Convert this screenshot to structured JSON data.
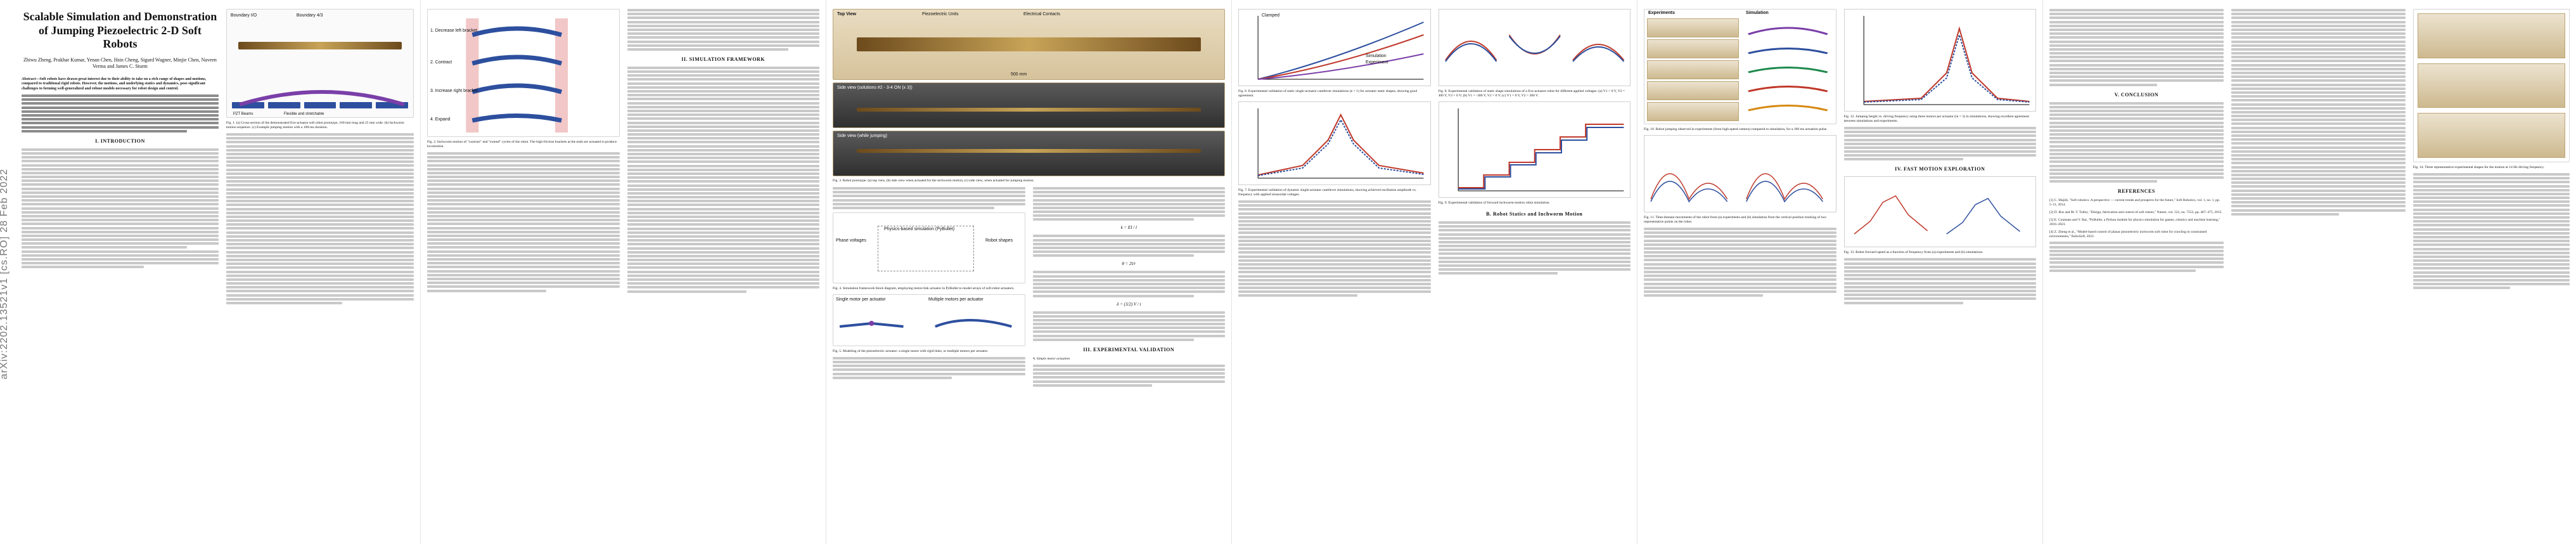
{
  "sidebar": {
    "arxiv_id": "arXiv:2202.13521v1  [cs.RO]  28 Feb 2022"
  },
  "paper": {
    "title": "Scalable Simulation and Demonstration of Jumping Piezoelectric 2-D Soft Robots",
    "authors": "Zhiwu Zheng, Prakhar Kumar, Yenan Chen, Hsin Cheng, Sigurd Wagner, Minjie Chen, Naveen Verma and James C. Sturm",
    "abstract_lead": "Abstract—Soft robots have drawn great interest due to their ability to take on a rich range of shapes and motions, compared to traditional rigid robots. However, the motions, and underlying statics and dynamics, pose significant challenges to forming well-generalized and robust models necessary for robot design and control.",
    "sections": {
      "intro": "I. INTRODUCTION",
      "sim": "II. SIMULATION FRAMEWORK",
      "exp": "III. EXPERIMENTAL VALIDATION",
      "fast": "IV. FAST MOTION EXPLORATION",
      "conclusion": "V. CONCLUSION",
      "references": "REFERENCES"
    },
    "subsections": {
      "a": "A. Simple motor actuation",
      "b": "B. Robot Statics and Inchworm Motion",
      "c": "C. Robot Dynamics and Jumping"
    }
  },
  "figures": {
    "fig1": {
      "labels": [
        "Boundary I/O",
        "Boundary 4/3",
        "1. Decrease left bracket",
        "2. Contract",
        "3. Increase right bracket",
        "4. Expand"
      ],
      "caption": "Fig. 1. (a) Cross-section of the demonstrated five-actuator soft robot prototype, 160 mm long and 25 mm wide. (b) Inchworm motion sequence. (c) Example jumping motion with a 100-ms duration.",
      "legend": [
        "PZT Beams",
        "Flexible and stretchable"
      ]
    },
    "fig2": {
      "caption": "Fig. 2. Inchworm motion of \"contract\" and \"extend\" cycles of the robot. The high-friction brackets at the ends are actuated to produce locomotion."
    },
    "fig3": {
      "labels": [
        "Top View",
        "Piezoelectric Units",
        "Electrical Contacts",
        "500 mm",
        "Side view (solutions #2 - 3-4 ON (x 3))",
        "Side view (while jumping)"
      ],
      "caption": "Fig. 3. Robot prototype: (a) top view, (b) side view when actuated for the inchworm motion, (c) side view, when actuated for jumping motion."
    },
    "fig4": {
      "labels": [
        "Phase voltages",
        "Physics-based simulation (PyBullet)",
        "Robot shapes",
        "Torque"
      ],
      "caption": "Fig. 4. Simulation framework block diagram, employing motor-link actuator in PyBullet to model arrays of soft-robot actuators."
    },
    "fig5": {
      "labels": [
        "Single motor per actuator",
        "Multiple motors per actuator",
        "Rigid",
        "Rigid passive connection"
      ],
      "caption": "Fig. 5. Modeling of the piezoelectric actuator: a single motor with rigid links, or multiple motors per actuator."
    },
    "fig6": {
      "labels": [
        "Clamped",
        "Simulation",
        "Experiment"
      ],
      "caption": "Fig. 6. Experimental validation of static single-actuator cantilever simulations (n = 1) for actuator static shapes, showing good agreement."
    },
    "fig7": {
      "caption": "Fig. 7. Experimental validation of dynamic single-actuator cantilever simulations, showing achieved oscillation amplitude vs. frequency with applied sinusoidal voltages."
    },
    "fig8": {
      "caption": "Fig. 8. Experimental validation of static shape simulations of a five-actuator robot for different applied voltages: (a) V1 = 0 V, V2 = 300 V, V3 = 0 V; (b) V1 = -300 V, V2 = 0 V; (c) V1 = 0 V, V2 = 300 V."
    },
    "fig9": {
      "caption": "Fig. 9. Experimental validation of forward inchworm-motion robot simulation."
    },
    "fig10": {
      "labels": [
        "Experiments",
        "Simulation"
      ],
      "caption": "Fig. 10. Robot jumping observed in experiments (from high-speed camera) compared to simulation, for a 100 ms actuation pulse."
    },
    "fig11": {
      "caption": "Fig. 11. Time-domain movements of the robot from (a) experiments and (b) simulation from the vertical position tracking of two representative points on the robot."
    },
    "fig12": {
      "caption": "Fig. 12. Jumping height vs. driving frequency using three motors per actuator (m = 3) in simulations, showing excellent agreement between simulations and experiments."
    },
    "fig13": {
      "caption": "Fig. 13. Robot forward speed as a function of frequency from (a) experiments and (b) simulations."
    },
    "fig14": {
      "caption": "Fig. 14. Three representative experimental shapes for the motion at 14 Hz driving frequency."
    }
  },
  "equations": {
    "eq1": "k = EI / l",
    "eq2": "θ = 2l/r",
    "eq3": "δ = (3/2) V / t",
    "eq4": "E_c = 3 d31 E L^2 / (...)"
  },
  "references": [
    "[1] C. Majidi, \"Soft robotics: A perspective — current trends and prospects for the future,\" Soft Robotics, vol. 1, no. 1, pp. 5–11, 2014.",
    "[2] D. Rus and M. T. Tolley, \"Design, fabrication and control of soft robots,\" Nature, vol. 521, no. 7553, pp. 467–475, 2015.",
    "[3] E. Coumans and Y. Bai, \"PyBullet, a Python module for physics simulation for games, robotics and machine learning,\" 2016–2021.",
    "[4] Z. Zheng et al., \"Model-based control of planar piezoelectric inchworm soft robot for crawling in constrained environments,\" RoboSoft, 2022."
  ]
}
